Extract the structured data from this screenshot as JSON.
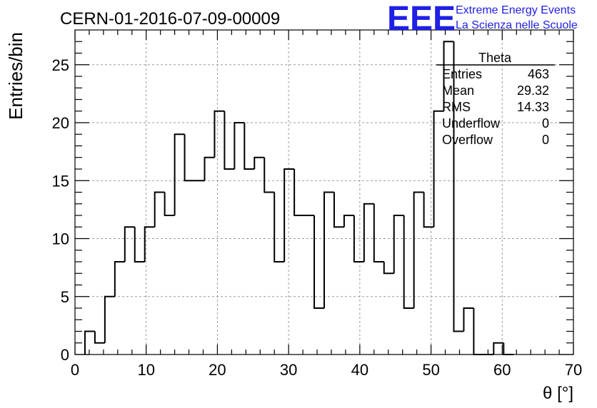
{
  "chart_data": {
    "type": "bar",
    "title": "CERN-01-2016-07-09-00009",
    "xlabel": "θ [°]",
    "ylabel": "Entries/bin",
    "xlim": [
      0,
      70
    ],
    "ylim": [
      0,
      28
    ],
    "x_ticks": [
      "0",
      "10",
      "20",
      "30",
      "40",
      "50",
      "60",
      "70"
    ],
    "y_ticks": [
      "0",
      "5",
      "10",
      "15",
      "20",
      "25"
    ],
    "grid": true,
    "bin_width": 1.4,
    "bin_start": 1.4,
    "values": [
      2,
      1,
      5,
      8,
      11,
      8,
      11,
      14,
      12,
      19,
      15,
      15,
      17,
      21,
      16,
      20,
      16,
      17,
      14,
      8,
      16,
      12,
      12,
      4,
      14,
      11,
      12,
      8,
      13,
      8,
      7,
      12,
      4,
      14,
      11,
      21,
      27,
      2,
      4,
      0,
      0,
      1,
      0
    ],
    "stats_box": {
      "title": "Theta",
      "rows": [
        {
          "label": "Entries",
          "value": "463"
        },
        {
          "label": "Mean",
          "value": "29.32"
        },
        {
          "label": "RMS",
          "value": "14.33"
        },
        {
          "label": "Underflow",
          "value": "0"
        },
        {
          "label": "Overflow",
          "value": "0"
        }
      ]
    },
    "logo": {
      "mark": "EEE",
      "line1": "Extreme Energy Events",
      "line2": "La Scienza nelle Scuole",
      "color": "#1f1fe6"
    },
    "line_color": "#000000"
  }
}
